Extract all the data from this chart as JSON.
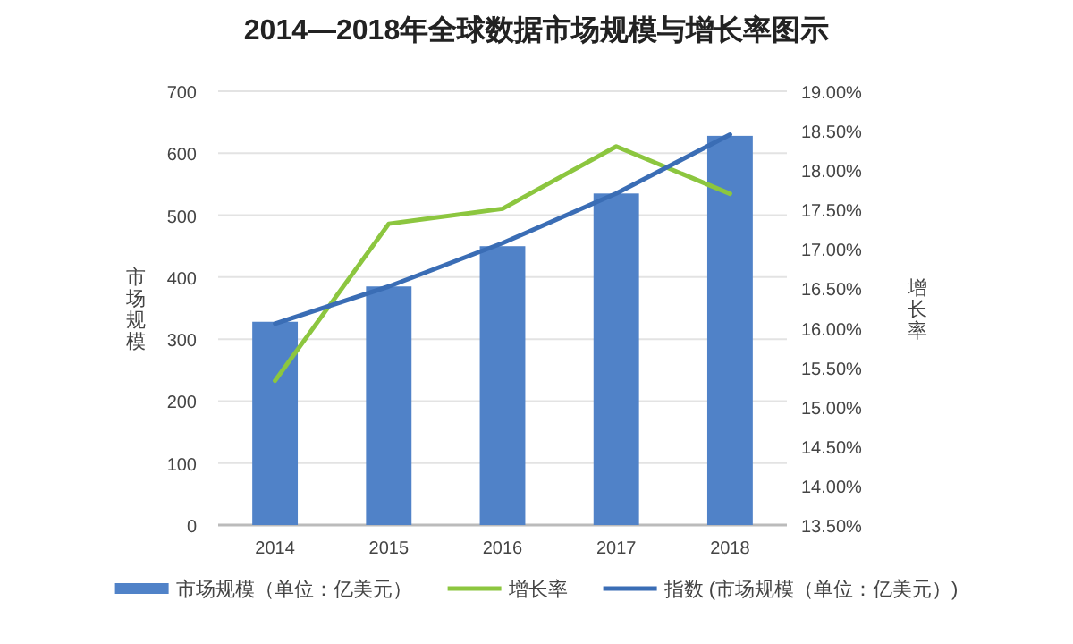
{
  "chart_data": {
    "type": "bar",
    "title": "2014—2018年全球数据市场规模与增长率图示",
    "ylabel": "市场规模",
    "y2label": "增长率",
    "categories": [
      "2014",
      "2015",
      "2016",
      "2017",
      "2018"
    ],
    "series": [
      {
        "name": "市场规模（单位：亿美元）",
        "color": "#5082c8",
        "values": [
          328,
          385,
          450,
          535,
          628
        ]
      },
      {
        "name": "增长率",
        "type": "line",
        "axis": "y2",
        "color": "#8cc63f",
        "values": [
          15.33,
          17.32,
          17.51,
          18.3,
          17.7
        ]
      },
      {
        "name": "指数 (市场规模（单位：亿美元）)",
        "type": "line",
        "color": "#3a6db5",
        "values": [
          325,
          385,
          455,
          535,
          630
        ]
      }
    ],
    "ylim": [
      0,
      700
    ],
    "yticks": [
      0,
      100,
      200,
      300,
      400,
      500,
      600,
      700
    ],
    "y2lim": [
      13.5,
      19
    ],
    "y2ticks": [
      {
        "value": 13.5,
        "label": "13.50%"
      },
      {
        "value": 14,
        "label": "14.00%"
      },
      {
        "value": 14.5,
        "label": "14.50%"
      },
      {
        "value": 15,
        "label": "15.00%"
      },
      {
        "value": 15.5,
        "label": "15.50%"
      },
      {
        "value": 16,
        "label": "16.00%"
      },
      {
        "value": 16.5,
        "label": "16.50%"
      },
      {
        "value": 17,
        "label": "17.00%"
      },
      {
        "value": 17.5,
        "label": "17.50%"
      },
      {
        "value": 18,
        "label": "18.00%"
      },
      {
        "value": 18.5,
        "label": "18.50%"
      },
      {
        "value": 19,
        "label": "19.00%"
      }
    ],
    "grid": "y",
    "legend": "bottom"
  }
}
